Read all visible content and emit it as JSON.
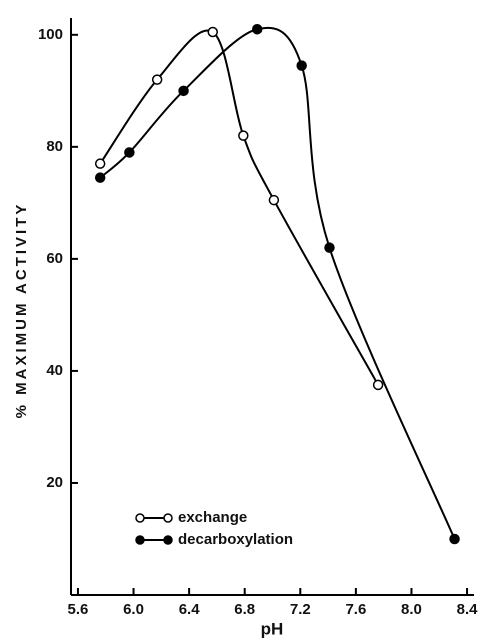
{
  "chart_data": {
    "type": "line",
    "xlabel": "pH",
    "ylabel": "% MAXIMUM ACTIVITY",
    "series": [
      {
        "name": "exchange",
        "color": "#000000",
        "marker": "open",
        "x": [
          5.76,
          6.17,
          6.57,
          6.79,
          7.01,
          7.76
        ],
        "values": [
          77,
          92,
          100.5,
          82,
          70.5,
          37.5
        ]
      },
      {
        "name": "decarboxylation",
        "color": "#000000",
        "marker": "filled",
        "x": [
          5.76,
          5.97,
          6.36,
          6.89,
          7.21,
          7.41,
          8.31
        ],
        "values": [
          74.5,
          79,
          90,
          101,
          94.5,
          62,
          10
        ]
      }
    ],
    "xlim": [
      5.55,
      8.45
    ],
    "ylim": [
      0,
      103
    ],
    "xticks": [
      5.6,
      {
        "value": 6,
        "label": "6.0"
      },
      6.4,
      6.8,
      7.2,
      7.6,
      {
        "value": 8,
        "label": "8.0"
      },
      8.4
    ],
    "yticks": [
      20,
      40,
      60,
      80,
      100
    ],
    "legend": "lower left",
    "grid": false
  }
}
